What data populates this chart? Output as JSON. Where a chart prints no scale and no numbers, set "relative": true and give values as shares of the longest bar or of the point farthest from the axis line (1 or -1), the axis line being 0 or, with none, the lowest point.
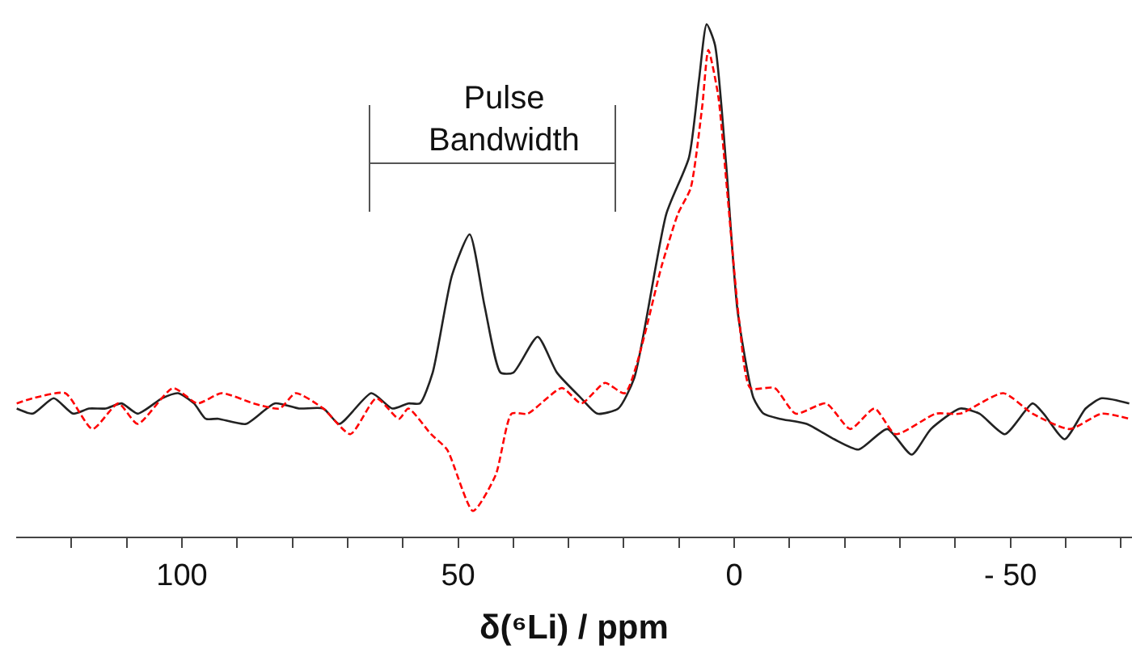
{
  "chart_data": {
    "type": "line",
    "relative": true,
    "xlabel": "δ(⁶Li) / ppm",
    "xlim": [
      130,
      -72
    ],
    "xticks": [
      {
        "value": 120,
        "label": null
      },
      {
        "value": 110,
        "label": null
      },
      100,
      {
        "value": 90,
        "label": null
      },
      {
        "value": 80,
        "label": null
      },
      {
        "value": 70,
        "label": null
      },
      {
        "value": 60,
        "label": null
      },
      50,
      {
        "value": 40,
        "label": null
      },
      {
        "value": 30,
        "label": null
      },
      {
        "value": 20,
        "label": null
      },
      {
        "value": 10,
        "label": null
      },
      0,
      {
        "value": -10,
        "label": null
      },
      {
        "value": -20,
        "label": null
      },
      {
        "value": -30,
        "label": null
      },
      {
        "value": -40,
        "label": null
      },
      {
        "value": -50,
        "label": "- 50"
      },
      {
        "value": -60,
        "label": null
      },
      {
        "value": -70,
        "label": null
      }
    ],
    "tick_labels": "x",
    "annotations": [
      "Pulse\nBandwidth"
    ],
    "series": [
      {
        "color": "#222222",
        "line_style": "solid",
        "x": [
          129.9,
          127.0,
          123.2,
          119.7,
          116.8,
          113.8,
          110.9,
          108.0,
          103.6,
          100.7,
          97.8,
          95.7,
          93.4,
          88.4,
          83.2,
          78.8,
          74.4,
          71.5,
          65.7,
          61.9,
          59.0,
          56.9,
          54.6,
          51.1,
          47.9,
          45.2,
          42.3,
          40.0,
          35.6,
          32.1,
          27.7,
          24.8,
          21.0,
          18.1,
          12.3,
          8.2,
          6.4,
          5.0,
          3.5,
          1.5,
          -0.6,
          -3.5,
          -5.3,
          -8.2,
          -13.1,
          -18.1,
          -22.5,
          -27.7,
          -32.1,
          -35.6,
          -40.9,
          -44.4,
          -49.0,
          -54.0,
          -56.0,
          -59.8,
          -63.6,
          -66.5,
          -71.5
        ],
        "values": [
          0.25,
          0.24,
          0.27,
          0.24,
          0.25,
          0.25,
          0.26,
          0.24,
          0.27,
          0.28,
          0.26,
          0.23,
          0.23,
          0.22,
          0.26,
          0.25,
          0.25,
          0.22,
          0.28,
          0.25,
          0.26,
          0.26,
          0.32,
          0.51,
          0.59,
          0.45,
          0.32,
          0.32,
          0.39,
          0.32,
          0.27,
          0.24,
          0.25,
          0.31,
          0.63,
          0.74,
          0.89,
          1.0,
          0.96,
          0.73,
          0.44,
          0.27,
          0.24,
          0.23,
          0.22,
          0.19,
          0.17,
          0.21,
          0.16,
          0.21,
          0.25,
          0.24,
          0.2,
          0.26,
          0.24,
          0.19,
          0.25,
          0.27,
          0.26
        ]
      },
      {
        "color": "#ff0000",
        "line_style": "dashed",
        "x": [
          129.9,
          127.0,
          121.1,
          116.2,
          111.5,
          108.0,
          101.6,
          97.2,
          92.8,
          87.0,
          82.3,
          79.4,
          74.4,
          69.5,
          64.8,
          60.7,
          59.0,
          54.9,
          52.0,
          47.3,
          43.2,
          40.3,
          37.4,
          31.2,
          27.7,
          23.4,
          19.8,
          13.1,
          10.2,
          7.9,
          5.8,
          4.7,
          2.9,
          1.5,
          -0.9,
          -2.9,
          -7.3,
          -11.1,
          -16.6,
          -21.0,
          -25.4,
          -29.2,
          -36.5,
          -40.9,
          -48.7,
          -54.0,
          -60.7,
          -66.5,
          -71.5
        ],
        "values": [
          0.26,
          0.27,
          0.28,
          0.21,
          0.26,
          0.22,
          0.29,
          0.26,
          0.28,
          0.26,
          0.25,
          0.28,
          0.25,
          0.2,
          0.27,
          0.23,
          0.25,
          0.2,
          0.17,
          0.05,
          0.12,
          0.24,
          0.24,
          0.29,
          0.26,
          0.3,
          0.28,
          0.53,
          0.63,
          0.68,
          0.84,
          0.95,
          0.86,
          0.7,
          0.42,
          0.29,
          0.29,
          0.24,
          0.26,
          0.21,
          0.25,
          0.2,
          0.24,
          0.24,
          0.28,
          0.24,
          0.21,
          0.24,
          0.23
        ]
      }
    ]
  }
}
